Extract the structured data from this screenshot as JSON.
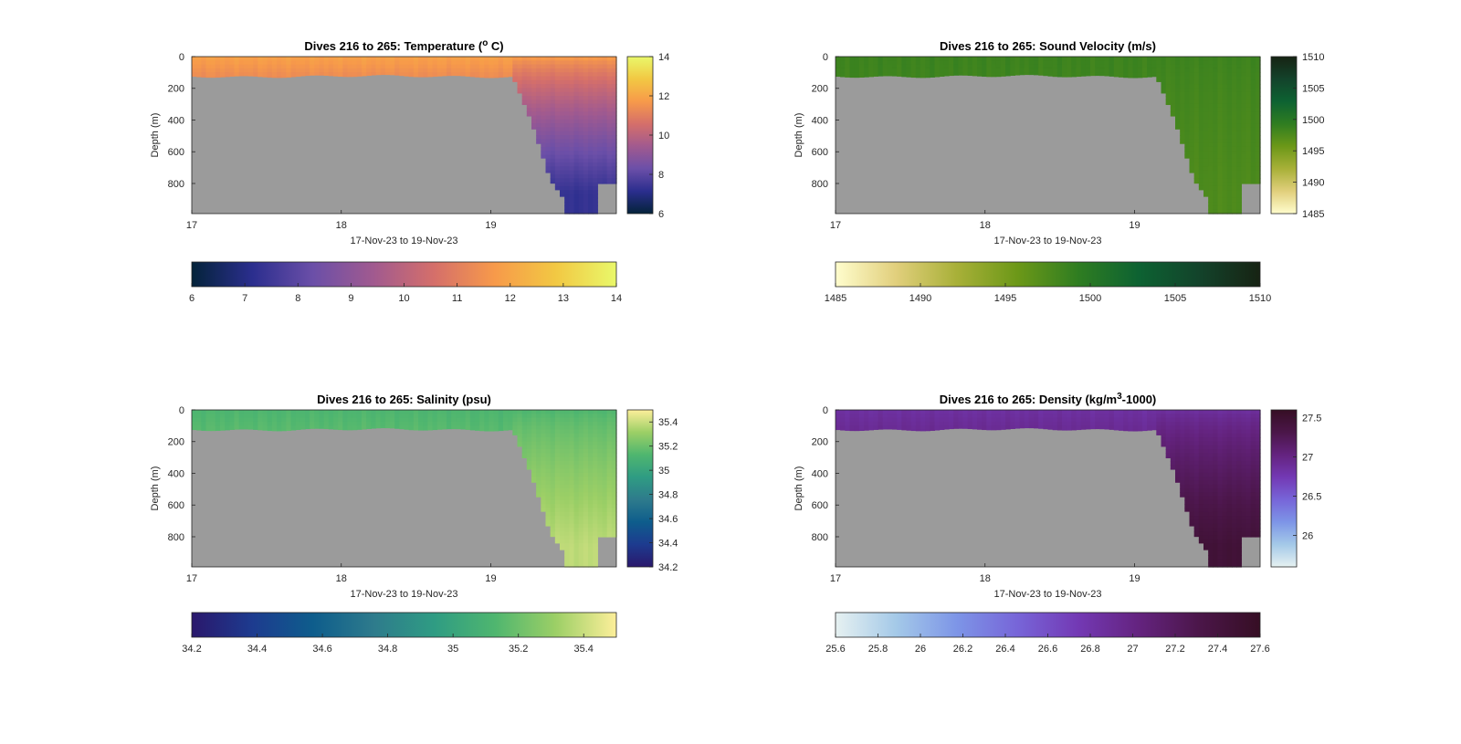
{
  "figure": {
    "background": "#ffffff",
    "panel_background": "#9b9b9b",
    "frame_color": "#262626",
    "colormaps": {
      "thermal": [
        "#04233a",
        "#2b2e8e",
        "#6b4fa8",
        "#a15a8f",
        "#d56f6a",
        "#f79a4a",
        "#f2c843",
        "#e9f86a"
      ],
      "speed": [
        "#fffdcd",
        "#e1cf7c",
        "#a8b038",
        "#6c9818",
        "#2f7d21",
        "#0d6232",
        "#13432b",
        "#172313"
      ],
      "haline": [
        "#2a186c",
        "#1d3b8f",
        "#0e5d8c",
        "#2e7b8c",
        "#2f9c83",
        "#4fb66f",
        "#9ccf66",
        "#fdef9a"
      ],
      "dense": [
        "#e6f1f1",
        "#a4c9e8",
        "#7d95e7",
        "#7765d8",
        "#7339b4",
        "#64237f",
        "#4b1649",
        "#360e24"
      ]
    }
  },
  "chart_data": [
    {
      "id": "temperature",
      "type": "heatmap",
      "colormap": "thermal",
      "title_parts": [
        "Dives 216 to 265: Temperature (",
        "o",
        " C)"
      ],
      "xlabel": "17-Nov-23 to 19-Nov-23",
      "ylabel": "Depth (m)",
      "x_ticks": [
        "17",
        "18",
        "19"
      ],
      "x_tick_values": [
        17,
        18,
        19
      ],
      "xlim": [
        17,
        19.84
      ],
      "y_ticks": [
        "0",
        "200",
        "400",
        "600",
        "800"
      ],
      "y_tick_values": [
        0,
        200,
        400,
        600,
        800
      ],
      "ylim": [
        0,
        990
      ],
      "clim": [
        6,
        14
      ],
      "colorbar_vertical_ticks": [
        "6",
        "8",
        "10",
        "12",
        "14"
      ],
      "colorbar_vertical_values": [
        6,
        8,
        10,
        12,
        14
      ],
      "colorbar_horizontal_ticks": [
        "6",
        "7",
        "8",
        "9",
        "10",
        "11",
        "12",
        "13",
        "14"
      ],
      "colorbar_horizontal_values": [
        6,
        7,
        8,
        9,
        10,
        11,
        12,
        13,
        14
      ],
      "surface_value": 11.9,
      "deep_value": 7.3
    },
    {
      "id": "sound-velocity",
      "type": "heatmap",
      "colormap": "speed",
      "title_parts": [
        "Dives 216 to 265: Sound Velocity (m/s)"
      ],
      "xlabel": "17-Nov-23 to 19-Nov-23",
      "ylabel": "Depth (m)",
      "x_ticks": [
        "17",
        "18",
        "19"
      ],
      "x_tick_values": [
        17,
        18,
        19
      ],
      "xlim": [
        17,
        19.84
      ],
      "y_ticks": [
        "0",
        "200",
        "400",
        "600",
        "800"
      ],
      "y_tick_values": [
        0,
        200,
        400,
        600,
        800
      ],
      "ylim": [
        0,
        990
      ],
      "clim": [
        1485,
        1510
      ],
      "colorbar_vertical_ticks": [
        "1485",
        "1490",
        "1495",
        "1500",
        "1505",
        "1510"
      ],
      "colorbar_vertical_values": [
        1485,
        1490,
        1495,
        1500,
        1505,
        1510
      ],
      "colorbar_horizontal_ticks": [
        "1485",
        "1490",
        "1495",
        "1500",
        "1505",
        "1510"
      ],
      "colorbar_horizontal_values": [
        1485,
        1490,
        1495,
        1500,
        1505,
        1510
      ],
      "surface_value": 1498.5,
      "deep_value": 1497.5
    },
    {
      "id": "salinity",
      "type": "heatmap",
      "colormap": "haline",
      "title_parts": [
        "Dives 216 to 265: Salinity (psu)"
      ],
      "xlabel": "17-Nov-23 to 19-Nov-23",
      "ylabel": "Depth (m)",
      "x_ticks": [
        "17",
        "18",
        "19"
      ],
      "x_tick_values": [
        17,
        18,
        19
      ],
      "xlim": [
        17,
        19.84
      ],
      "y_ticks": [
        "0",
        "200",
        "400",
        "600",
        "800"
      ],
      "y_tick_values": [
        0,
        200,
        400,
        600,
        800
      ],
      "ylim": [
        0,
        990
      ],
      "clim": [
        34.2,
        35.5
      ],
      "colorbar_vertical_ticks": [
        "34.2",
        "34.4",
        "34.6",
        "34.8",
        "35",
        "35.2",
        "35.4"
      ],
      "colorbar_vertical_values": [
        34.2,
        34.4,
        34.6,
        34.8,
        35,
        35.2,
        35.4
      ],
      "colorbar_horizontal_ticks": [
        "34.2",
        "34.4",
        "34.6",
        "34.8",
        "35",
        "35.2",
        "35.4"
      ],
      "colorbar_horizontal_values": [
        34.2,
        34.4,
        34.6,
        34.8,
        35,
        35.2,
        35.4
      ],
      "surface_value": 35.12,
      "deep_value": 35.38
    },
    {
      "id": "density",
      "type": "heatmap",
      "colormap": "dense",
      "title_parts": [
        "Dives 216 to 265: Density (kg/m",
        "3",
        "-1000)"
      ],
      "xlabel": "17-Nov-23 to 19-Nov-23",
      "ylabel": "Depth (m)",
      "x_ticks": [
        "17",
        "18",
        "19"
      ],
      "x_tick_values": [
        17,
        18,
        19
      ],
      "xlim": [
        17,
        19.84
      ],
      "y_ticks": [
        "0",
        "200",
        "400",
        "600",
        "800"
      ],
      "y_tick_values": [
        0,
        200,
        400,
        600,
        800
      ],
      "ylim": [
        0,
        990
      ],
      "clim": [
        25.6,
        27.6
      ],
      "colorbar_vertical_ticks": [
        "26",
        "26.5",
        "27",
        "27.5"
      ],
      "colorbar_vertical_values": [
        26,
        26.5,
        27,
        27.5
      ],
      "colorbar_horizontal_ticks": [
        "25.6",
        "25.8",
        "26",
        "26.2",
        "26.4",
        "26.6",
        "26.8",
        "27",
        "27.2",
        "27.4",
        "27.6"
      ],
      "colorbar_horizontal_values": [
        25.6,
        25.8,
        26,
        26.2,
        26.4,
        26.6,
        26.8,
        27,
        27.2,
        27.4,
        27.6
      ],
      "surface_value": 26.85,
      "deep_value": 27.45
    }
  ]
}
